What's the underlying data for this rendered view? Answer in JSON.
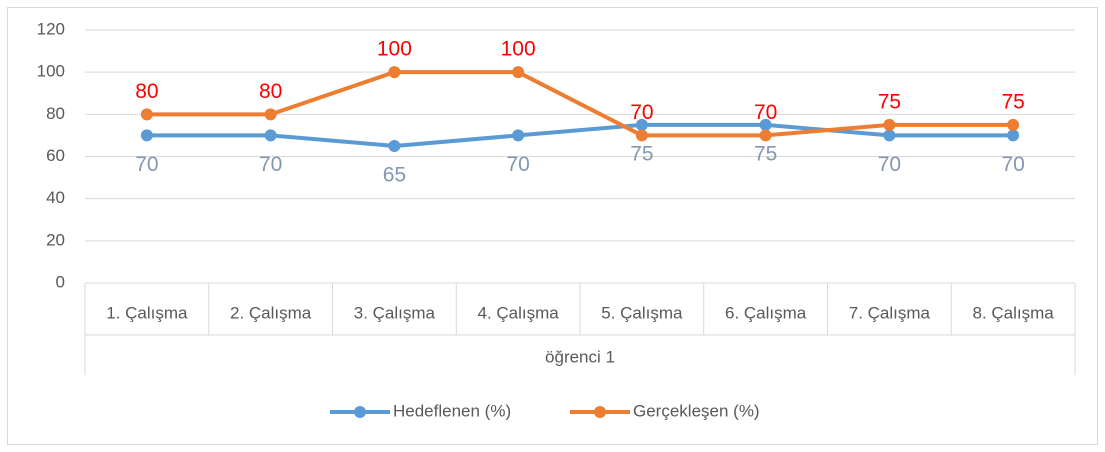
{
  "chart_data": {
    "type": "line",
    "categories": [
      "1. Çalışma",
      "2. Çalışma",
      "3. Çalışma",
      "4. Çalışma",
      "5. Çalışma",
      "6. Çalışma",
      "7. Çalışma",
      "8. Çalışma"
    ],
    "group_label": "öğrenci 1",
    "series": [
      {
        "name": "Hedeflenen (%)",
        "color": "#5b9bd5",
        "label_color": "#8497b0",
        "values": [
          70,
          70,
          65,
          70,
          75,
          75,
          70,
          70
        ]
      },
      {
        "name": "Gerçekleşen (%)",
        "color": "#ed7d31",
        "label_color": "#ff0000",
        "values": [
          80,
          80,
          100,
          100,
          70,
          70,
          75,
          75
        ]
      }
    ],
    "ylim": [
      0,
      120
    ],
    "yticks": [
      0,
      20,
      40,
      60,
      80,
      100,
      120
    ],
    "grid": true,
    "legend": "bottom"
  }
}
